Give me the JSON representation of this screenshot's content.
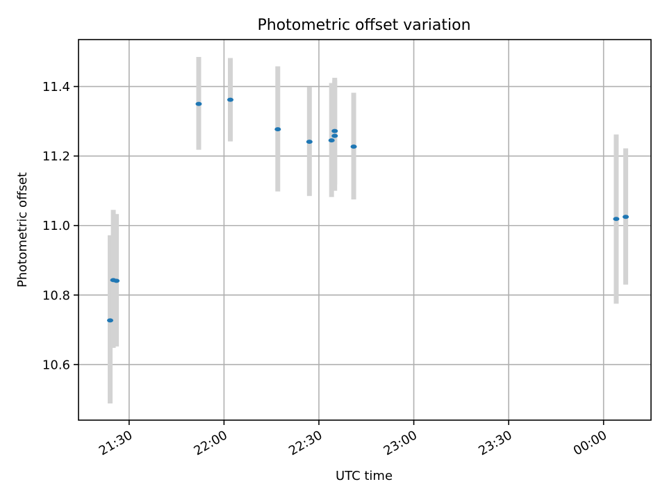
{
  "chart_data": {
    "type": "scatter",
    "title": "Photometric offset variation",
    "xlabel": "UTC time",
    "ylabel": "Photometric offset",
    "x_axis": "time",
    "xlim": [
      "21:14",
      "00:15"
    ],
    "ylim": [
      10.44,
      11.535
    ],
    "x_ticks": [
      "21:30",
      "22:00",
      "22:30",
      "23:00",
      "23:30",
      "00:00"
    ],
    "y_ticks": [
      10.6,
      10.8,
      11.0,
      11.2,
      11.4
    ],
    "grid": true,
    "series": [
      {
        "points": [
          {
            "t": "21:24",
            "y": 10.727,
            "lo": 10.488,
            "hi": 10.972
          },
          {
            "t": "21:25",
            "y": 10.843,
            "lo": 10.648,
            "hi": 11.045
          },
          {
            "t": "21:26",
            "y": 10.841,
            "lo": 10.652,
            "hi": 11.033
          },
          {
            "t": "21:52",
            "y": 11.35,
            "lo": 11.218,
            "hi": 11.485
          },
          {
            "t": "22:02",
            "y": 11.362,
            "lo": 11.242,
            "hi": 11.482
          },
          {
            "t": "22:17",
            "y": 11.277,
            "lo": 11.098,
            "hi": 11.458
          },
          {
            "t": "22:27",
            "y": 11.241,
            "lo": 11.085,
            "hi": 11.398
          },
          {
            "t": "22:34",
            "y": 11.245,
            "lo": 11.082,
            "hi": 11.41
          },
          {
            "t": "22:35",
            "y": 11.258,
            "lo": 11.1,
            "hi": 11.418
          },
          {
            "t": "22:35",
            "y": 11.272,
            "lo": 11.118,
            "hi": 11.425
          },
          {
            "t": "22:41",
            "y": 11.227,
            "lo": 11.075,
            "hi": 11.382
          },
          {
            "t": "00:04",
            "y": 11.019,
            "lo": 10.775,
            "hi": 11.262
          },
          {
            "t": "00:07",
            "y": 11.025,
            "lo": 10.83,
            "hi": 11.222
          }
        ]
      }
    ],
    "colors": {
      "point": "#1f77b4",
      "errorbar": "#d3d3d3",
      "grid": "#b0b0b0"
    }
  }
}
